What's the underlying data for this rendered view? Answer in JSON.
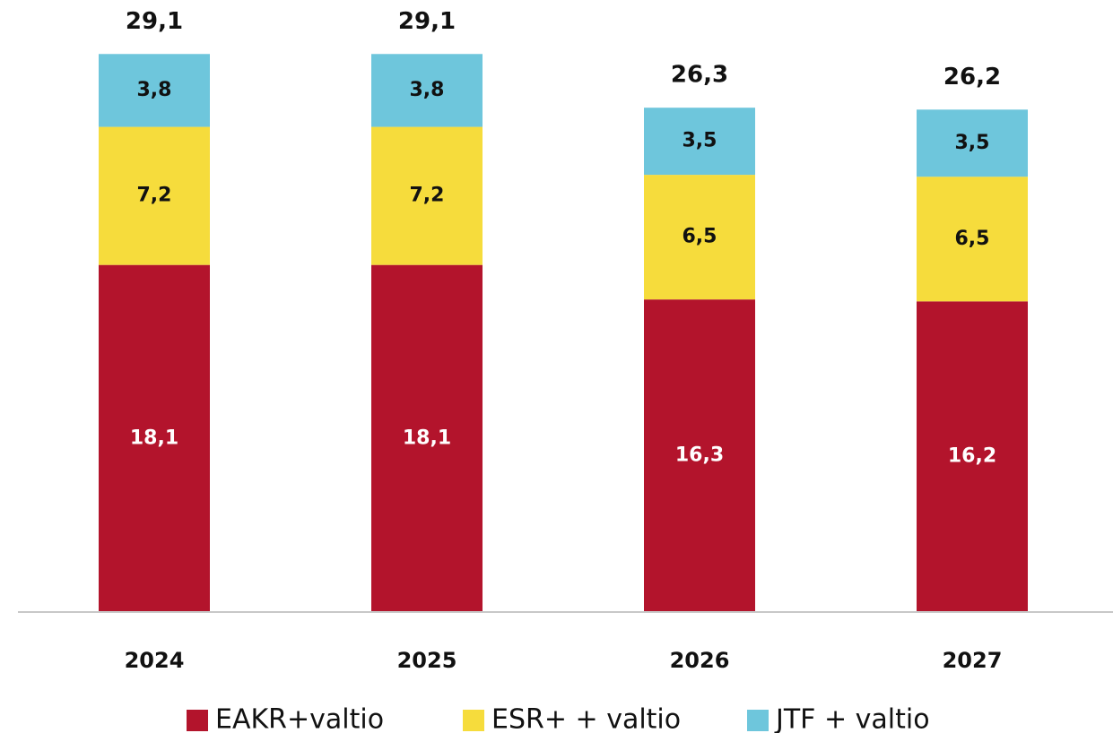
{
  "chart_data": {
    "type": "stacked_bar",
    "categories": [
      "2024",
      "2025",
      "2026",
      "2027"
    ],
    "series": [
      {
        "name": "EAKR+valtio",
        "color": "#b3142c",
        "values": [
          18.1,
          18.1,
          16.3,
          16.2
        ],
        "value_labels": [
          "18,1",
          "18,1",
          "16,3",
          "16,2"
        ]
      },
      {
        "name": "ESR+ + valtio",
        "color": "#f6dc3c",
        "values": [
          7.2,
          7.2,
          6.5,
          6.5
        ],
        "value_labels": [
          "7,2",
          "7,2",
          "6,5",
          "6,5"
        ]
      },
      {
        "name": "JTF + valtio",
        "color": "#6ec6dc",
        "values": [
          3.8,
          3.8,
          3.5,
          3.5
        ],
        "value_labels": [
          "3,8",
          "3,8",
          "3,5",
          "3,5"
        ]
      }
    ],
    "totals": [
      29.1,
      29.1,
      26.3,
      26.2
    ],
    "total_labels": [
      "29,1",
      "29,1",
      "26,3",
      "26,2"
    ],
    "ylim": [
      0,
      30
    ],
    "legend": "bottom"
  }
}
